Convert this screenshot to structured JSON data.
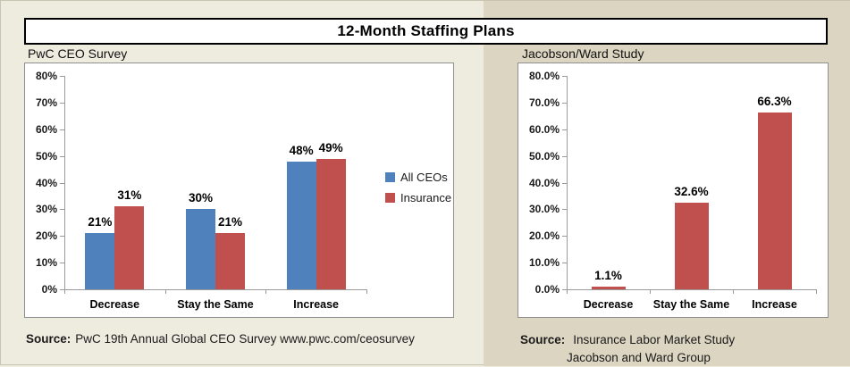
{
  "page": {
    "title": "12-Month Staffing Plans"
  },
  "colors": {
    "blue_series": "#4F81BD",
    "red_series": "#C0504D",
    "background_left": "#EEEBDF",
    "background_right": "#DBD5C1",
    "chart_border": "#8F8F8F",
    "axis_gray": "#9A9A9A",
    "title_border": "#000000"
  },
  "panels": {
    "left": {
      "heading": "PwC CEO Survey",
      "source_label": "Source:",
      "source_text": "PwC 19th Annual Global CEO Survey www.pwc.com/ceosurvey"
    },
    "right": {
      "heading": "Jacobson/Ward Study",
      "source_label": "Source:",
      "source_line1": "Insurance Labor Market Study",
      "source_line2": "Jacobson and Ward Group"
    }
  },
  "chart_data": [
    {
      "type": "bar",
      "title": "PwC CEO Survey",
      "categories": [
        "Decrease",
        "Stay the Same",
        "Increase"
      ],
      "series": [
        {
          "name": "All CEOs",
          "color": "#4F81BD",
          "values": [
            21,
            30,
            48
          ],
          "labels": [
            "21%",
            "30%",
            "48%"
          ]
        },
        {
          "name": "Insurance",
          "color": "#C0504D",
          "values": [
            31,
            21,
            49
          ],
          "labels": [
            "31%",
            "21%",
            "49%"
          ]
        }
      ],
      "ylim": [
        0,
        80
      ],
      "ytick_values": [
        0,
        10,
        20,
        30,
        40,
        50,
        60,
        70,
        80
      ],
      "ytick_labels": [
        "0%",
        "10%",
        "20%",
        "30%",
        "40%",
        "50%",
        "60%",
        "70%",
        "80%"
      ],
      "legend_position": "right",
      "grid": false
    },
    {
      "type": "bar",
      "title": "Jacobson/Ward Study",
      "categories": [
        "Decrease",
        "Stay the Same",
        "Increase"
      ],
      "series": [
        {
          "name": "Insurance",
          "color": "#C0504D",
          "values": [
            1.1,
            32.6,
            66.3
          ],
          "labels": [
            "1.1%",
            "32.6%",
            "66.3%"
          ]
        }
      ],
      "ylim": [
        0,
        80
      ],
      "ytick_values": [
        0,
        10,
        20,
        30,
        40,
        50,
        60,
        70,
        80
      ],
      "ytick_labels": [
        "0.0%",
        "10.0%",
        "20.0%",
        "30.0%",
        "40.0%",
        "50.0%",
        "60.0%",
        "70.0%",
        "80.0%"
      ],
      "legend_position": "none",
      "grid": false
    }
  ]
}
